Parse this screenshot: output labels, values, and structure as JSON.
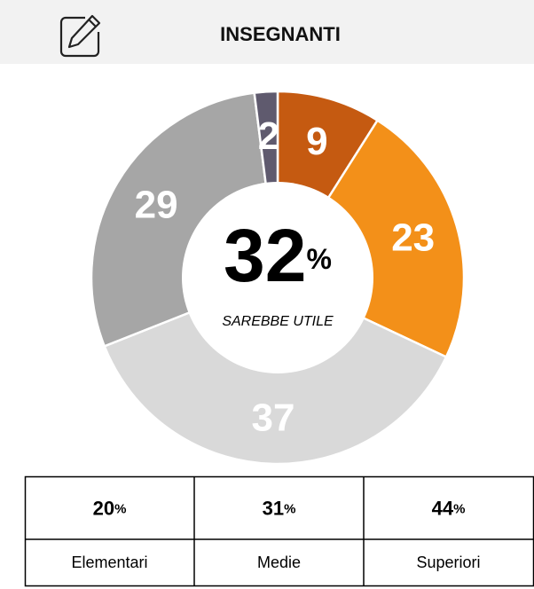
{
  "chart_data": {
    "type": "donut",
    "title": "INSEGNANTI",
    "values": [
      9,
      23,
      37,
      29,
      2
    ],
    "colors": [
      "#c55a11",
      "#f39019",
      "#d9d9d9",
      "#a6a6a6",
      "#5f5a6e"
    ],
    "center": {
      "value": 32,
      "unit": "%",
      "label": "SAREBBE UTILE"
    }
  },
  "table": {
    "columns": [
      {
        "value": 20,
        "unit": "%",
        "label": "Elementari"
      },
      {
        "value": 31,
        "unit": "%",
        "label": "Medie"
      },
      {
        "value": 44,
        "unit": "%",
        "label": "Superiori"
      }
    ]
  }
}
